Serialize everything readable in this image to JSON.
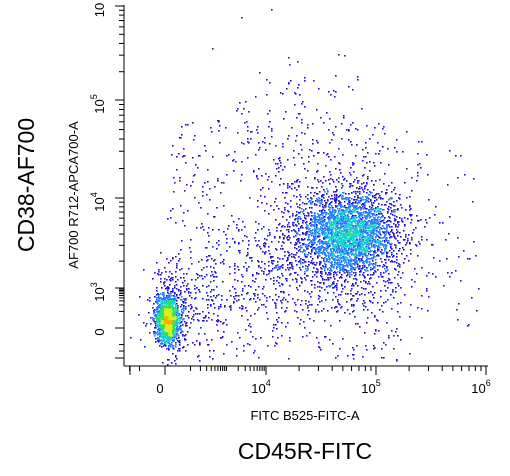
{
  "chart_data": {
    "type": "scatter",
    "subtype": "flow-cytometry-density-dot-plot",
    "x_axis": {
      "scale": "biexponential",
      "channel_label": "FITC B525-FITC-A",
      "marker_label": "CD45R-FITC",
      "range": [
        -300,
        1000000
      ],
      "ticks": [
        {
          "value": 0,
          "base": "0",
          "exp": ""
        },
        {
          "value": 10000,
          "base": "10",
          "exp": "4"
        },
        {
          "value": 100000,
          "base": "10",
          "exp": "5"
        },
        {
          "value": 1000000,
          "base": "10",
          "exp": "6"
        }
      ]
    },
    "y_axis": {
      "scale": "biexponential",
      "channel_label": "AF700 R712-APCA700-A",
      "marker_label": "CD38-AF700",
      "range": [
        -300,
        100000
      ],
      "ticks": [
        {
          "value": 0,
          "base": "0",
          "exp": ""
        },
        {
          "value": 1000,
          "base": "10",
          "exp": "3"
        },
        {
          "value": 10000,
          "base": "10",
          "exp": "4"
        },
        {
          "value": 100000,
          "base": "10",
          "exp": "5"
        }
      ],
      "top_tick_partial": {
        "value": 1000000,
        "base": "10",
        "exp": ""
      }
    },
    "grid": false,
    "color_map": [
      "#1a0fd8",
      "#1e7bff",
      "#11d2c8",
      "#2ee05a",
      "#d8f018",
      "#ffb000",
      "#ff3000"
    ],
    "populations": [
      {
        "center_x": 0,
        "center_y": 0,
        "spread_x": "narrow",
        "spread_y": "narrow",
        "density": "very high"
      },
      {
        "center_x": 60000,
        "center_y": 4000,
        "spread_x": "wide",
        "spread_y": "wide",
        "density": "high"
      },
      {
        "center_x": 25000,
        "center_y": 1000,
        "spread_x": "wide",
        "spread_y": "wide",
        "density": "low",
        "note": "scattered events between populations"
      }
    ]
  }
}
